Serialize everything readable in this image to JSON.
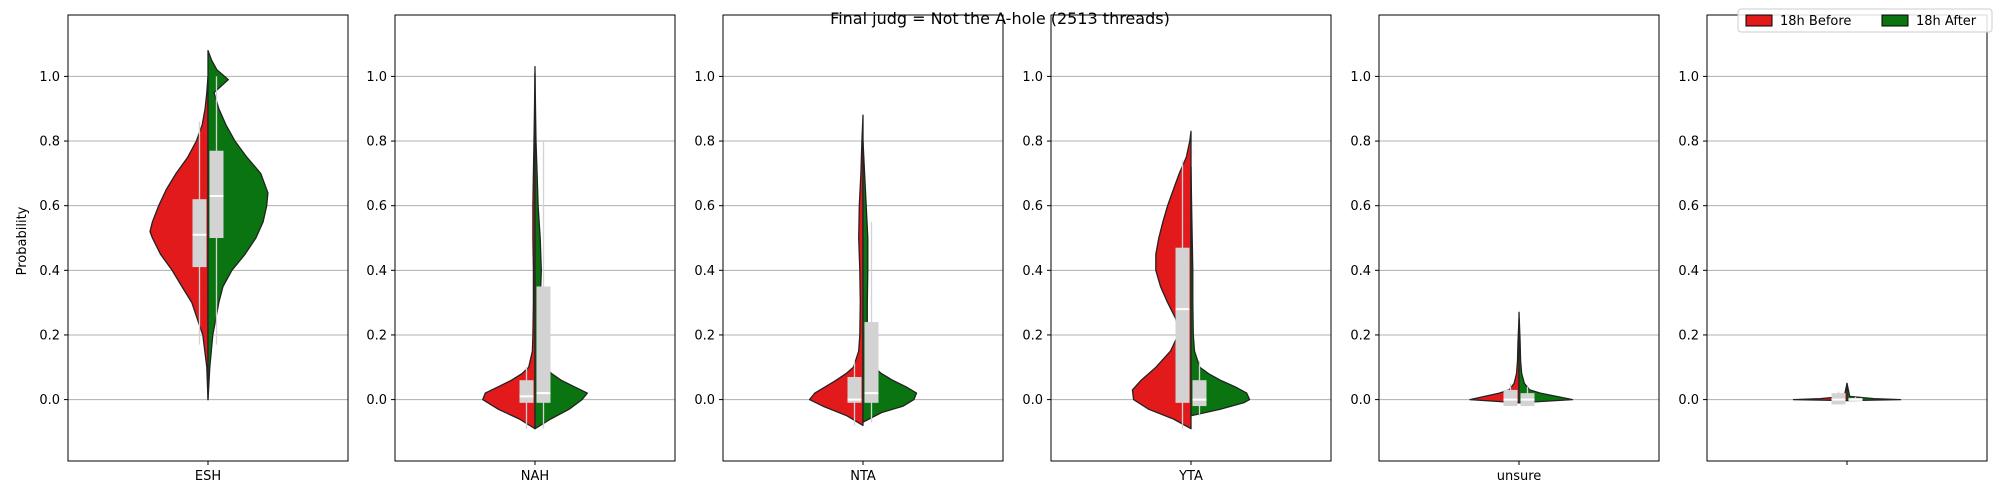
{
  "figure": {
    "suptitle": "Final judg = Not the A-hole (2513 threads)",
    "ylabel": "Probability",
    "legend": {
      "position": "top-right",
      "entries": [
        {
          "label": "18h Before",
          "color": "#e31a1c"
        },
        {
          "label": "18h After",
          "color": "#0a7510"
        }
      ]
    }
  },
  "chart_data": [
    {
      "type": "violin",
      "category": "ESH",
      "ylim": [
        -0.19,
        1.19
      ],
      "yticks": [
        0.0,
        0.2,
        0.4,
        0.6,
        0.8,
        1.0
      ],
      "grid": true,
      "series": [
        {
          "name": "18h Before",
          "color": "#e31a1c",
          "max_width": 0.92,
          "density": [
            [
              0.0,
              0.0
            ],
            [
              0.1,
              0.02
            ],
            [
              0.2,
              0.09
            ],
            [
              0.3,
              0.28
            ],
            [
              0.35,
              0.45
            ],
            [
              0.4,
              0.62
            ],
            [
              0.45,
              0.82
            ],
            [
              0.5,
              0.96
            ],
            [
              0.52,
              1.0
            ],
            [
              0.55,
              0.96
            ],
            [
              0.6,
              0.85
            ],
            [
              0.65,
              0.72
            ],
            [
              0.7,
              0.55
            ],
            [
              0.75,
              0.35
            ],
            [
              0.8,
              0.2
            ],
            [
              0.85,
              0.1
            ],
            [
              0.9,
              0.05
            ],
            [
              0.95,
              0.02
            ],
            [
              1.0,
              0.0
            ]
          ],
          "box": {
            "q1": 0.41,
            "median": 0.51,
            "q3": 0.62,
            "whisker_low": 0.17,
            "whisker_high": 0.86
          }
        },
        {
          "name": "18h After",
          "color": "#0a7510",
          "max_width": 0.95,
          "density": [
            [
              0.0,
              0.0
            ],
            [
              0.1,
              0.03
            ],
            [
              0.2,
              0.08
            ],
            [
              0.3,
              0.18
            ],
            [
              0.35,
              0.25
            ],
            [
              0.4,
              0.4
            ],
            [
              0.45,
              0.62
            ],
            [
              0.5,
              0.8
            ],
            [
              0.55,
              0.92
            ],
            [
              0.6,
              0.98
            ],
            [
              0.64,
              1.0
            ],
            [
              0.7,
              0.88
            ],
            [
              0.75,
              0.65
            ],
            [
              0.8,
              0.45
            ],
            [
              0.85,
              0.3
            ],
            [
              0.9,
              0.18
            ],
            [
              0.95,
              0.1
            ],
            [
              0.99,
              0.34
            ],
            [
              1.02,
              0.15
            ],
            [
              1.05,
              0.06
            ],
            [
              1.08,
              0.0
            ]
          ],
          "box": {
            "q1": 0.5,
            "median": 0.63,
            "q3": 0.77,
            "whisker_low": 0.17,
            "whisker_high": 1.0
          }
        }
      ]
    },
    {
      "type": "violin",
      "category": "NAH",
      "ylim": [
        -0.19,
        1.19
      ],
      "yticks": [
        0.0,
        0.2,
        0.4,
        0.6,
        0.8,
        1.0
      ],
      "grid": true,
      "series": [
        {
          "name": "18h Before",
          "color": "#e31a1c",
          "max_width": 0.83,
          "density": [
            [
              -0.09,
              0.0
            ],
            [
              -0.06,
              0.3
            ],
            [
              -0.03,
              0.7
            ],
            [
              0.0,
              1.0
            ],
            [
              0.02,
              0.95
            ],
            [
              0.04,
              0.7
            ],
            [
              0.06,
              0.45
            ],
            [
              0.08,
              0.25
            ],
            [
              0.1,
              0.12
            ],
            [
              0.15,
              0.05
            ],
            [
              0.2,
              0.04
            ],
            [
              0.3,
              0.03
            ],
            [
              0.4,
              0.03
            ],
            [
              0.5,
              0.04
            ],
            [
              0.6,
              0.04
            ],
            [
              0.7,
              0.03
            ],
            [
              0.8,
              0.02
            ],
            [
              0.9,
              0.01
            ],
            [
              1.03,
              0.0
            ]
          ],
          "box": {
            "q1": -0.01,
            "median": 0.01,
            "q3": 0.06,
            "whisker_low": -0.09,
            "whisker_high": 0.1
          }
        },
        {
          "name": "18h After",
          "color": "#0a7510",
          "max_width": 0.83,
          "density": [
            [
              -0.09,
              0.0
            ],
            [
              -0.06,
              0.3
            ],
            [
              -0.03,
              0.65
            ],
            [
              0.0,
              0.9
            ],
            [
              0.02,
              1.0
            ],
            [
              0.04,
              0.75
            ],
            [
              0.06,
              0.5
            ],
            [
              0.08,
              0.32
            ],
            [
              0.1,
              0.2
            ],
            [
              0.15,
              0.12
            ],
            [
              0.2,
              0.1
            ],
            [
              0.3,
              0.1
            ],
            [
              0.4,
              0.12
            ],
            [
              0.5,
              0.1
            ],
            [
              0.6,
              0.06
            ],
            [
              0.7,
              0.04
            ],
            [
              0.8,
              0.02
            ],
            [
              0.9,
              0.01
            ],
            [
              1.01,
              0.0
            ]
          ],
          "box": {
            "q1": -0.01,
            "median": 0.02,
            "q3": 0.35,
            "whisker_low": -0.09,
            "whisker_high": 0.8
          }
        }
      ]
    },
    {
      "type": "violin",
      "category": "NTA",
      "ylim": [
        -0.19,
        1.19
      ],
      "yticks": [
        0.0,
        0.2,
        0.4,
        0.6,
        0.8,
        1.0
      ],
      "grid": true,
      "series": [
        {
          "name": "18h Before",
          "color": "#e31a1c",
          "max_width": 0.85,
          "density": [
            [
              -0.08,
              0.0
            ],
            [
              -0.05,
              0.3
            ],
            [
              -0.02,
              0.75
            ],
            [
              0.0,
              1.0
            ],
            [
              0.02,
              0.9
            ],
            [
              0.04,
              0.7
            ],
            [
              0.06,
              0.5
            ],
            [
              0.08,
              0.32
            ],
            [
              0.1,
              0.18
            ],
            [
              0.15,
              0.08
            ],
            [
              0.2,
              0.06
            ],
            [
              0.3,
              0.05
            ],
            [
              0.4,
              0.06
            ],
            [
              0.5,
              0.08
            ],
            [
              0.6,
              0.07
            ],
            [
              0.7,
              0.04
            ],
            [
              0.8,
              0.02
            ],
            [
              0.88,
              0.0
            ]
          ],
          "box": {
            "q1": -0.01,
            "median": 0.0,
            "q3": 0.07,
            "whisker_low": -0.08,
            "whisker_high": 0.12
          }
        },
        {
          "name": "18h After",
          "color": "#0a7510",
          "max_width": 0.85,
          "density": [
            [
              -0.07,
              0.0
            ],
            [
              -0.04,
              0.35
            ],
            [
              -0.02,
              0.75
            ],
            [
              0.0,
              0.95
            ],
            [
              0.02,
              1.0
            ],
            [
              0.04,
              0.8
            ],
            [
              0.06,
              0.55
            ],
            [
              0.08,
              0.35
            ],
            [
              0.1,
              0.2
            ],
            [
              0.15,
              0.1
            ],
            [
              0.2,
              0.08
            ],
            [
              0.3,
              0.08
            ],
            [
              0.4,
              0.09
            ],
            [
              0.5,
              0.09
            ],
            [
              0.6,
              0.06
            ],
            [
              0.7,
              0.03
            ],
            [
              0.8,
              0.0
            ]
          ],
          "box": {
            "q1": -0.01,
            "median": 0.02,
            "q3": 0.24,
            "whisker_low": -0.07,
            "whisker_high": 0.55
          }
        }
      ]
    },
    {
      "type": "violin",
      "category": "YTA",
      "ylim": [
        -0.19,
        1.19
      ],
      "yticks": [
        0.0,
        0.2,
        0.4,
        0.6,
        0.8,
        1.0
      ],
      "grid": true,
      "series": [
        {
          "name": "18h Before",
          "color": "#e31a1c",
          "max_width": 0.93,
          "density": [
            [
              -0.09,
              0.0
            ],
            [
              -0.06,
              0.3
            ],
            [
              -0.03,
              0.72
            ],
            [
              0.0,
              0.98
            ],
            [
              0.03,
              1.0
            ],
            [
              0.06,
              0.85
            ],
            [
              0.1,
              0.6
            ],
            [
              0.15,
              0.35
            ],
            [
              0.2,
              0.22
            ],
            [
              0.25,
              0.26
            ],
            [
              0.3,
              0.4
            ],
            [
              0.35,
              0.52
            ],
            [
              0.4,
              0.6
            ],
            [
              0.45,
              0.6
            ],
            [
              0.5,
              0.55
            ],
            [
              0.55,
              0.48
            ],
            [
              0.6,
              0.4
            ],
            [
              0.65,
              0.3
            ],
            [
              0.7,
              0.2
            ],
            [
              0.75,
              0.08
            ],
            [
              0.8,
              0.02
            ],
            [
              0.83,
              0.0
            ]
          ],
          "box": {
            "q1": -0.01,
            "median": 0.28,
            "q3": 0.47,
            "whisker_low": -0.09,
            "whisker_high": 0.74
          }
        },
        {
          "name": "18h After",
          "color": "#0a7510",
          "max_width": 0.93,
          "density": [
            [
              -0.05,
              0.0
            ],
            [
              -0.03,
              0.5
            ],
            [
              -0.01,
              0.9
            ],
            [
              0.0,
              1.0
            ],
            [
              0.02,
              0.95
            ],
            [
              0.04,
              0.75
            ],
            [
              0.06,
              0.5
            ],
            [
              0.08,
              0.3
            ],
            [
              0.1,
              0.15
            ],
            [
              0.15,
              0.06
            ],
            [
              0.2,
              0.04
            ],
            [
              0.3,
              0.03
            ],
            [
              0.4,
              0.03
            ],
            [
              0.5,
              0.02
            ],
            [
              0.6,
              0.01
            ],
            [
              0.72,
              0.0
            ]
          ],
          "box": {
            "q1": -0.02,
            "median": 0.0,
            "q3": 0.06,
            "whisker_low": -0.05,
            "whisker_high": 0.12
          }
        }
      ]
    },
    {
      "type": "violin",
      "category": "unsure",
      "ylim": [
        -0.19,
        1.19
      ],
      "yticks": [
        0.0,
        0.2,
        0.4,
        0.6,
        0.8,
        1.0
      ],
      "grid": true,
      "series": [
        {
          "name": "18h Before",
          "color": "#e31a1c",
          "max_width": 0.78,
          "density": [
            [
              -0.01,
              0.0
            ],
            [
              0.0,
              1.0
            ],
            [
              0.01,
              0.7
            ],
            [
              0.02,
              0.4
            ],
            [
              0.03,
              0.2
            ],
            [
              0.05,
              0.1
            ],
            [
              0.08,
              0.05
            ],
            [
              0.12,
              0.03
            ],
            [
              0.18,
              0.02
            ],
            [
              0.25,
              0.0
            ]
          ],
          "box": {
            "q1": -0.02,
            "median": 0.0,
            "q3": 0.03,
            "whisker_low": -0.02,
            "whisker_high": 0.05
          }
        },
        {
          "name": "18h After",
          "color": "#0a7510",
          "max_width": 0.85,
          "density": [
            [
              -0.01,
              0.0
            ],
            [
              0.0,
              1.0
            ],
            [
              0.01,
              0.7
            ],
            [
              0.02,
              0.4
            ],
            [
              0.03,
              0.2
            ],
            [
              0.05,
              0.1
            ],
            [
              0.08,
              0.05
            ],
            [
              0.12,
              0.03
            ],
            [
              0.18,
              0.02
            ],
            [
              0.27,
              0.0
            ]
          ],
          "box": {
            "q1": -0.02,
            "median": 0.0,
            "q3": 0.02,
            "whisker_low": -0.02,
            "whisker_high": 0.04
          }
        }
      ]
    },
    {
      "type": "violin",
      "category": "",
      "ylim": [
        -0.19,
        1.19
      ],
      "yticks": [
        0.0,
        0.2,
        0.4,
        0.6,
        0.8,
        1.0
      ],
      "grid": true,
      "series": [
        {
          "name": "18h Before",
          "color": "#e31a1c",
          "max_width": 0.85,
          "density": [
            [
              -0.003,
              0.0
            ],
            [
              0.0,
              1.0
            ],
            [
              0.003,
              0.5
            ],
            [
              0.01,
              0.05
            ],
            [
              0.05,
              0.0
            ]
          ],
          "box": {
            "q1": -0.015,
            "median": 0.0,
            "q3": 0.02,
            "whisker_low": -0.015,
            "whisker_high": 0.025
          }
        },
        {
          "name": "18h After",
          "color": "#0a7510",
          "max_width": 0.85,
          "density": [
            [
              -0.003,
              0.0
            ],
            [
              0.0,
              1.0
            ],
            [
              0.003,
              0.5
            ],
            [
              0.01,
              0.05
            ],
            [
              0.05,
              0.0
            ]
          ],
          "box": {
            "q1": -0.005,
            "median": 0.0,
            "q3": 0.005,
            "whisker_low": -0.005,
            "whisker_high": 0.008
          }
        }
      ]
    }
  ]
}
